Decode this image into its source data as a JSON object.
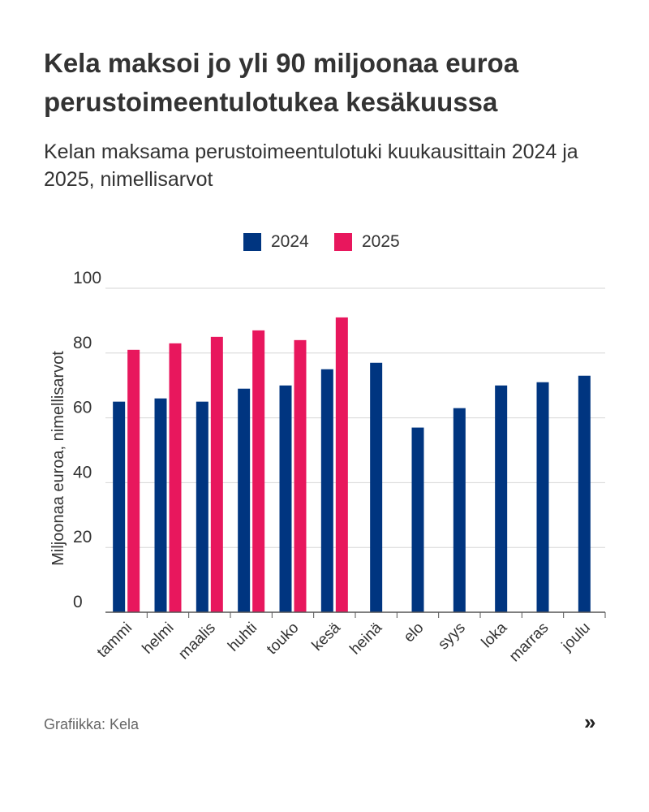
{
  "title": "Kela maksoi jo yli 90 miljoonaa euroa perustoimeentulotukea kesäkuussa",
  "subtitle": "Kelan maksama perustoimeentulotuki kuukausittain 2024 ja 2025, nimellisarvot",
  "source": "Grafiikka: Kela",
  "more_icon": "»",
  "colors": {
    "s2024": "#003580",
    "s2025": "#e8175d",
    "grid": "#d6d6d6",
    "axis": "#555555",
    "text": "#333333"
  },
  "chart_data": {
    "type": "bar",
    "title": "",
    "xlabel": "",
    "ylabel": "Miljoonaa euroa, nimellisarvot",
    "ylim": [
      0,
      100
    ],
    "yticks": [
      0,
      20,
      40,
      60,
      80,
      100
    ],
    "grid": true,
    "legend_position": "top-center",
    "categories": [
      "tammi",
      "helmi",
      "maalis",
      "huhti",
      "touko",
      "kesä",
      "heinä",
      "elo",
      "syys",
      "loka",
      "marras",
      "joulu"
    ],
    "series": [
      {
        "name": "2024",
        "color": "#003580",
        "values": [
          65,
          66,
          65,
          69,
          70,
          75,
          77,
          57,
          63,
          70,
          71,
          73
        ]
      },
      {
        "name": "2025",
        "color": "#e8175d",
        "values": [
          81,
          83,
          85,
          87,
          84,
          91,
          null,
          null,
          null,
          null,
          null,
          null
        ]
      }
    ]
  }
}
